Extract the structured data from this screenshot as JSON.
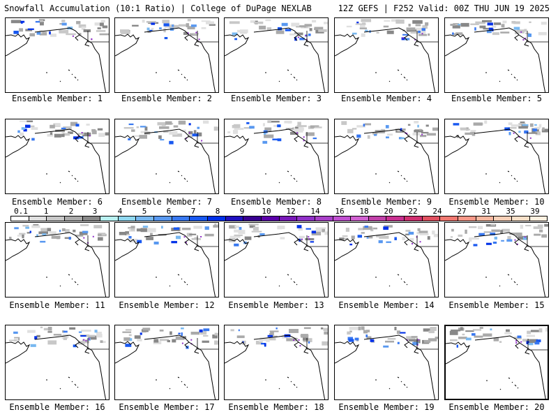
{
  "header": {
    "left_title": "Snowfall Accumulation (10:1 Ratio) | College of DuPage NEXLAB",
    "right_title": "12Z GEFS | F252 Valid: 00Z THU JUN 19 2025"
  },
  "panels": [
    {
      "label": "Ensemble Member: 1"
    },
    {
      "label": "Ensemble Member: 2"
    },
    {
      "label": "Ensemble Member: 3"
    },
    {
      "label": "Ensemble Member: 4"
    },
    {
      "label": "Ensemble Member: 5"
    },
    {
      "label": "Ensemble Member: 6"
    },
    {
      "label": "Ensemble Member: 7"
    },
    {
      "label": "Ensemble Member: 8"
    },
    {
      "label": "Ensemble Member: 9"
    },
    {
      "label": "Ensemble Member: 10"
    },
    {
      "label": "Ensemble Member: 11"
    },
    {
      "label": "Ensemble Member: 12"
    },
    {
      "label": "Ensemble Member: 13"
    },
    {
      "label": "Ensemble Member: 14"
    },
    {
      "label": "Ensemble Member: 15"
    },
    {
      "label": "Ensemble Member: 16"
    },
    {
      "label": "Ensemble Member: 17"
    },
    {
      "label": "Ensemble Member: 18"
    },
    {
      "label": "Ensemble Member: 19"
    },
    {
      "label": "Ensemble Member: 20"
    }
  ],
  "colorbar": {
    "tick_labels": [
      "0.1",
      "1",
      "2",
      "3",
      "4",
      "5",
      "6",
      "7",
      "8",
      "9",
      "10",
      "12",
      "14",
      "16",
      "18",
      "20",
      "22",
      "24",
      "27",
      "31",
      "35",
      "39"
    ],
    "colors": [
      "#ffffff",
      "#e0e0e0",
      "#c8c8c8",
      "#aaaaaa",
      "#888888",
      "#b8f0f0",
      "#90d8f0",
      "#78b8f0",
      "#5898f0",
      "#3878f0",
      "#1858f0",
      "#0030e8",
      "#2010c0",
      "#380090",
      "#5a00a8",
      "#7818b8",
      "#9030c8",
      "#a840c8",
      "#c050d0",
      "#d060d0",
      "#c040a8",
      "#c83090",
      "#d03070",
      "#e05060",
      "#f07870",
      "#f89888",
      "#f8b8a0",
      "#f8d0b8",
      "#f8e0c8",
      "#fff0e0"
    ]
  }
}
